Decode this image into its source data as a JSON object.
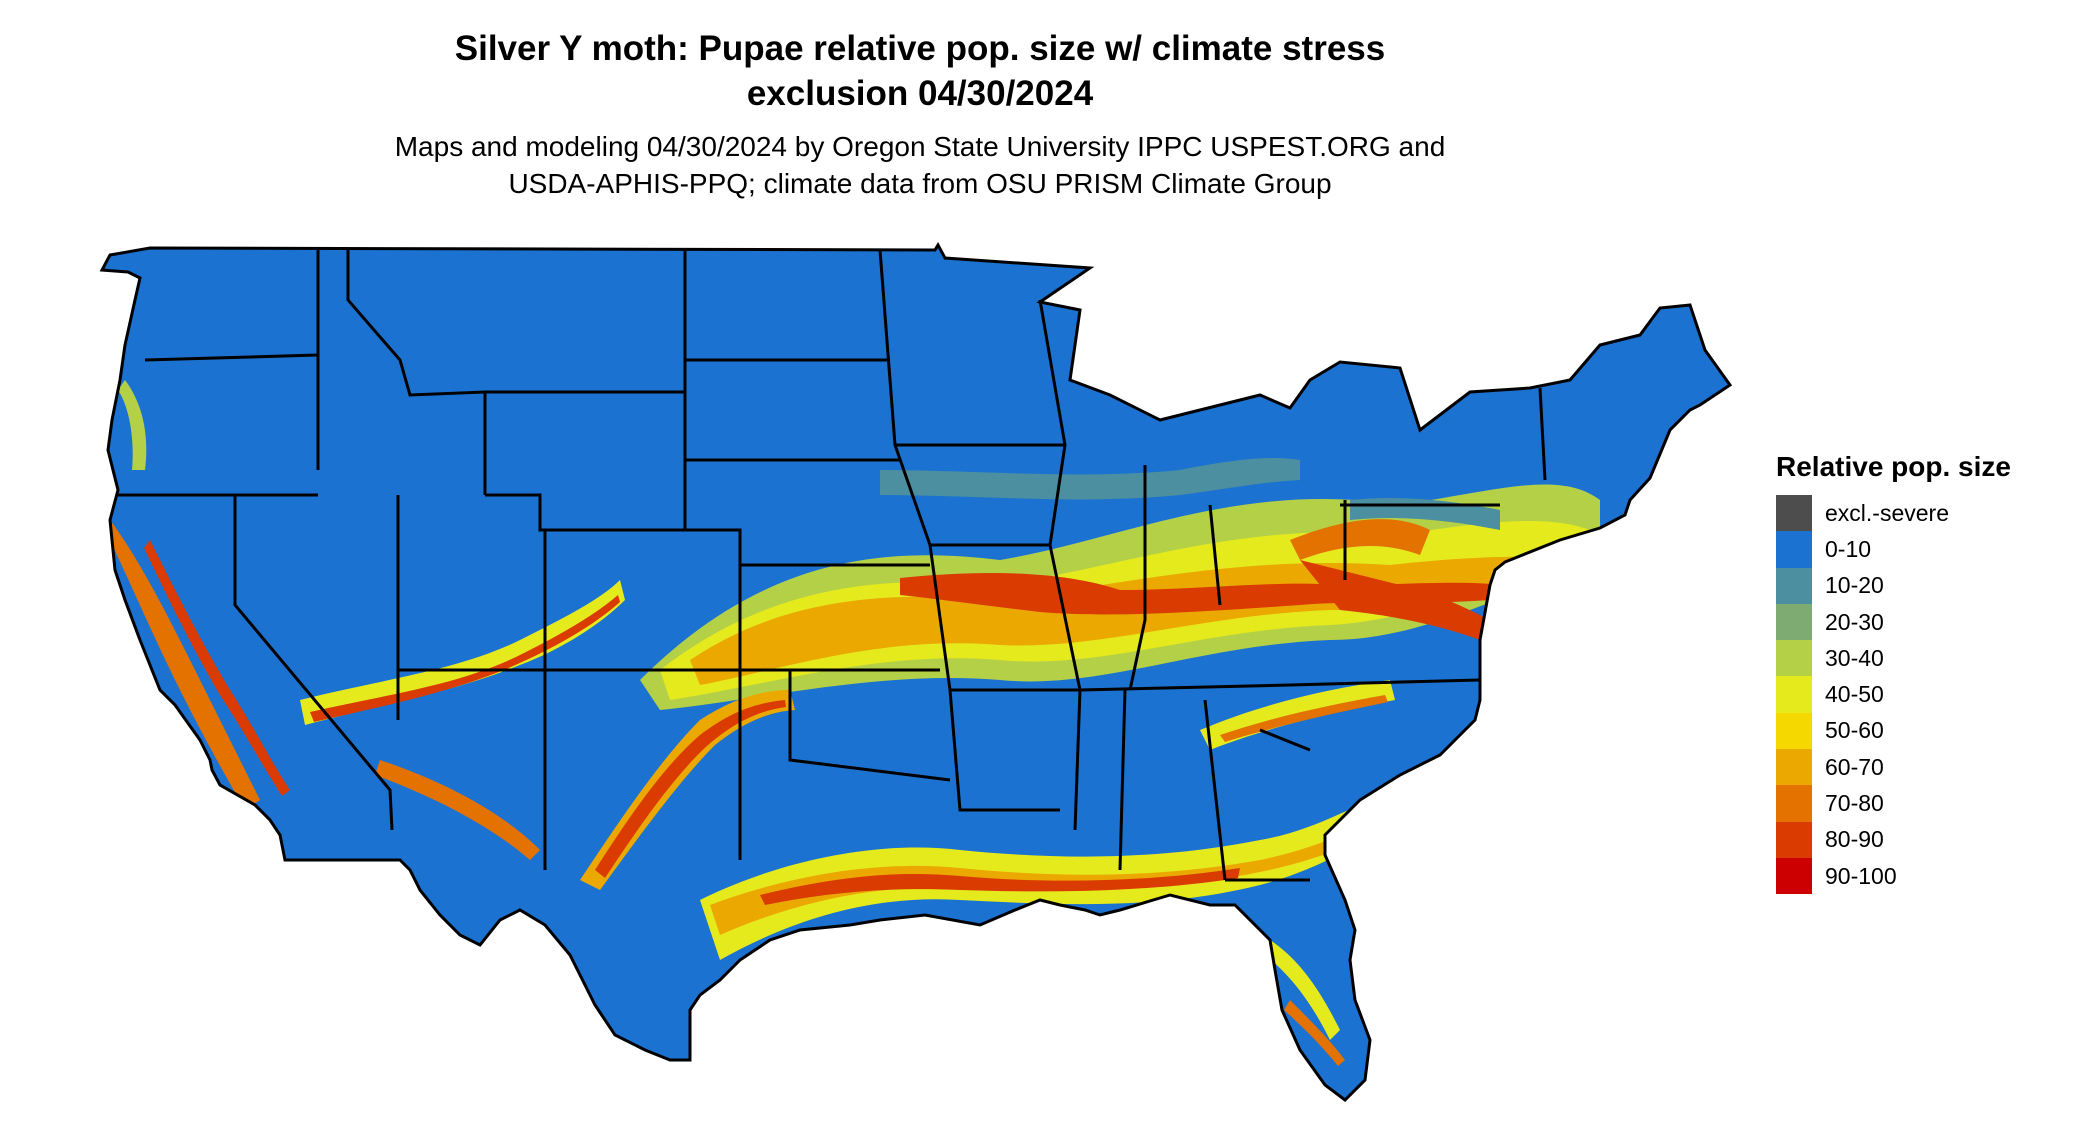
{
  "title": {
    "line1": "Silver Y moth: Pupae relative pop. size w/ climate stress",
    "line2": "exclusion 04/30/2024"
  },
  "subtitle": {
    "line1": "Maps and modeling 04/30/2024 by Oregon State University IPPC USPEST.ORG and",
    "line2": "USDA-APHIS-PPQ; climate data from OSU PRISM Climate Group"
  },
  "legend": {
    "title": "Relative pop. size",
    "items": [
      {
        "label": "excl.-severe",
        "color": "#4d4d4d"
      },
      {
        "label": "0-10",
        "color": "#1c72d0"
      },
      {
        "label": "10-20",
        "color": "#4b8fa0"
      },
      {
        "label": "20-30",
        "color": "#7dab72"
      },
      {
        "label": "30-40",
        "color": "#b4d047"
      },
      {
        "label": "40-50",
        "color": "#e5ea1d"
      },
      {
        "label": "50-60",
        "color": "#f5d800"
      },
      {
        "label": "60-70",
        "color": "#eba900"
      },
      {
        "label": "70-80",
        "color": "#e37200"
      },
      {
        "label": "80-90",
        "color": "#d93b00"
      },
      {
        "label": "90-100",
        "color": "#cc0000"
      }
    ]
  },
  "map": {
    "region": "Contiguous United States",
    "base_color": "#1c72d0",
    "border_color": "#000000"
  }
}
